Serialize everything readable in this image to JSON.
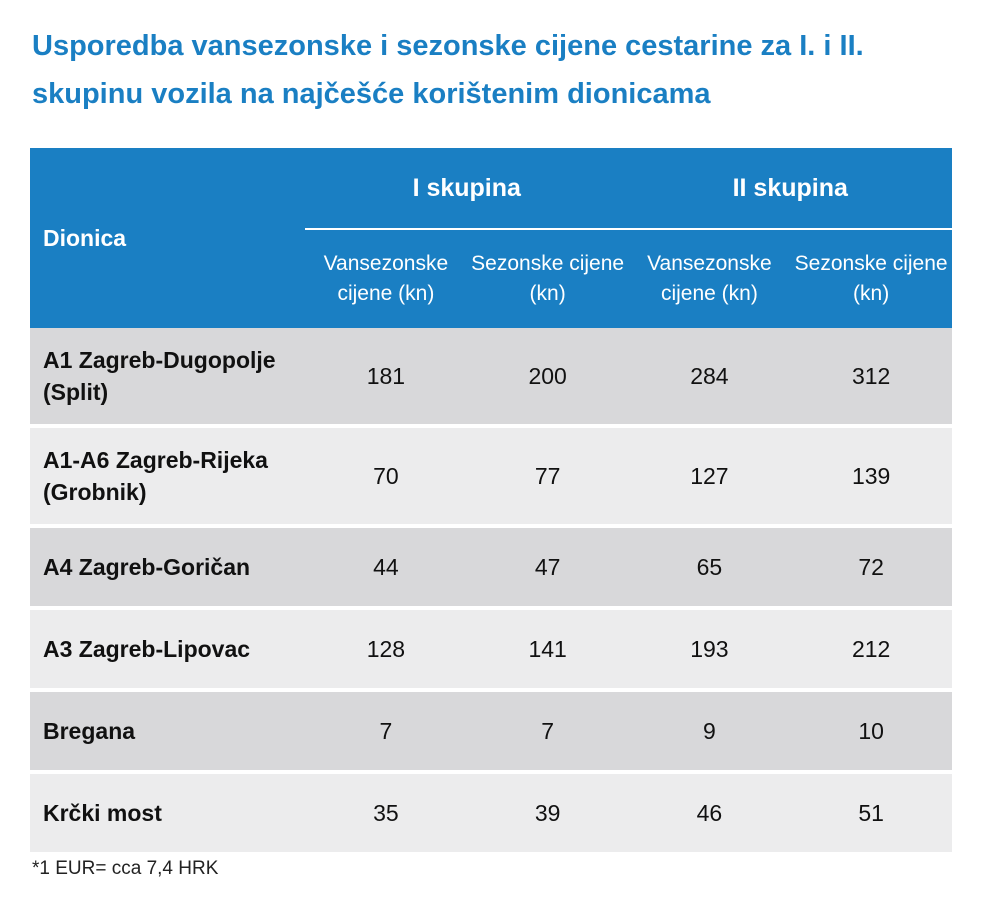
{
  "title": "Usporedba vansezonske i sezonske cijene cestarine za I. i II. skupinu vozila na najčešće korištenim dionicama",
  "table": {
    "header": {
      "section_label": "Dionica",
      "group1": "I skupina",
      "group2": "II skupina",
      "sub_offseason": "Vansezonske cijene (kn)",
      "sub_season": "Sezonske cijene (kn)"
    },
    "rows": [
      {
        "section": "A1 Zagreb-Dugopolje (Split)",
        "g1_off": "181",
        "g1_season": "200",
        "g2_off": "284",
        "g2_season": "312"
      },
      {
        "section": "A1-A6 Zagreb-Rijeka (Grobnik)",
        "g1_off": "70",
        "g1_season": "77",
        "g2_off": "127",
        "g2_season": "139"
      },
      {
        "section": "A4 Zagreb-Goričan",
        "g1_off": "44",
        "g1_season": "47",
        "g2_off": "65",
        "g2_season": "72"
      },
      {
        "section": "A3 Zagreb-Lipovac",
        "g1_off": "128",
        "g1_season": "141",
        "g2_off": "193",
        "g2_season": "212"
      },
      {
        "section": "Bregana",
        "g1_off": "7",
        "g1_season": "7",
        "g2_off": "9",
        "g2_season": "10"
      },
      {
        "section": "Krčki most",
        "g1_off": "35",
        "g1_season": "39",
        "g2_off": "46",
        "g2_season": "51"
      }
    ]
  },
  "footnote": "*1 EUR= cca 7,4 HRK",
  "colors": {
    "accent": "#1a7fc3",
    "row_dark": "#d8d8da",
    "row_light": "#ececed"
  }
}
